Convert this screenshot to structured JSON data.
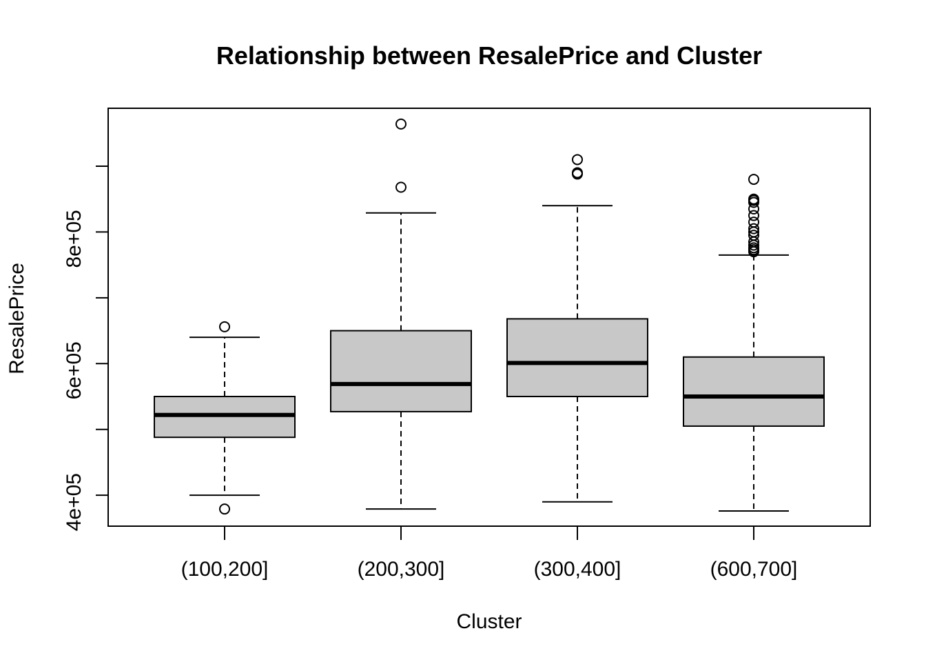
{
  "chart_data": {
    "type": "boxplot",
    "title": "Relationship between ResalePrice and Cluster",
    "xlabel": "Cluster",
    "ylabel": "ResalePrice",
    "ylim": [
      353000,
      988000
    ],
    "yticks": [
      400000,
      500000,
      600000,
      700000,
      800000,
      900000
    ],
    "ytick_labels": [
      "4e+05",
      "",
      "6e+05",
      "",
      "8e+05",
      ""
    ],
    "categories": [
      "(100,200]",
      "(200,300]",
      "(300,400]",
      "(600,700]"
    ],
    "box_fill": "#c8c8c8",
    "boxes": [
      {
        "category": "(100,200]",
        "whisker_low": 400000,
        "q1": 488000,
        "median": 522000,
        "q3": 550000,
        "whisker_high": 640000,
        "outliers": [
          656000,
          379000
        ]
      },
      {
        "category": "(200,300]",
        "whisker_low": 379000,
        "q1": 527000,
        "median": 569000,
        "q3": 650000,
        "whisker_high": 829000,
        "outliers": [
          868000,
          964000
        ]
      },
      {
        "category": "(300,400]",
        "whisker_low": 390000,
        "q1": 550000,
        "median": 601000,
        "q3": 668000,
        "whisker_high": 840000,
        "outliers": [
          888000,
          890000,
          910000
        ]
      },
      {
        "category": "(600,700]",
        "whisker_low": 376000,
        "q1": 505000,
        "median": 550000,
        "q3": 610000,
        "whisker_high": 765000,
        "outliers": [
          770000,
          773000,
          776000,
          780000,
          785000,
          795000,
          800000,
          805000,
          815000,
          825000,
          835000,
          845000,
          848000,
          850000,
          880000
        ]
      }
    ]
  }
}
